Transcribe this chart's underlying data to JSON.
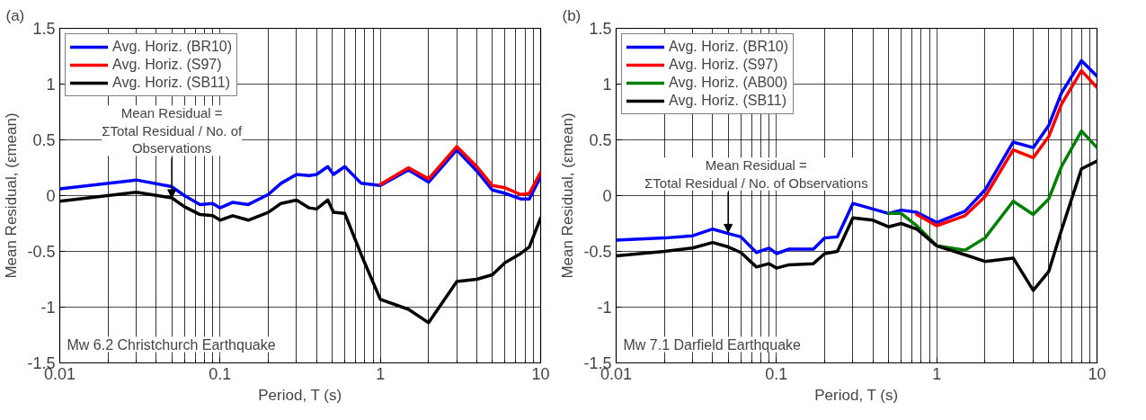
{
  "chart_data": [
    {
      "type": "line",
      "title": "(a)",
      "xlabel": "Period, T (s)",
      "ylabel": "Mean Residual, (εmean)",
      "log": "x",
      "grid": true,
      "legend": "top left",
      "xlim": [
        0.01,
        10
      ],
      "xticks": [
        0.01,
        0.1,
        1,
        10
      ],
      "ylim": [
        -1.5,
        1.5
      ],
      "yticks": [
        -1.5,
        -1,
        -0.5,
        0,
        0.5,
        1,
        1.5
      ],
      "x": [
        0.01,
        0.03,
        0.05,
        0.06,
        0.075,
        0.09,
        0.1,
        0.12,
        0.15,
        0.2,
        0.24,
        0.3,
        0.36,
        0.4,
        0.47,
        0.51,
        0.6,
        0.76,
        1,
        1.5,
        2,
        3,
        4,
        5,
        6,
        7.5,
        8.5,
        10
      ],
      "series": [
        {
          "name": "Avg. Horiz. (BR10)",
          "color": "#0000ff",
          "values": [
            0.06,
            0.14,
            0.08,
            0.0,
            -0.08,
            -0.07,
            -0.11,
            -0.06,
            -0.08,
            0.01,
            0.11,
            0.19,
            0.18,
            0.19,
            0.26,
            0.19,
            0.26,
            0.11,
            0.09,
            0.23,
            0.12,
            0.41,
            0.22,
            0.05,
            0.02,
            -0.03,
            -0.03,
            0.17
          ]
        },
        {
          "name": "Avg. Horiz. (S97)",
          "color": "#ff0000",
          "values": [
            null,
            null,
            null,
            null,
            null,
            null,
            null,
            null,
            null,
            null,
            null,
            null,
            null,
            null,
            null,
            null,
            null,
            null,
            0.1,
            0.25,
            0.15,
            0.44,
            0.26,
            0.09,
            0.07,
            0.01,
            0.02,
            0.21
          ]
        },
        {
          "name": "Avg. Horiz. (SB11)",
          "color": "#000000",
          "values": [
            -0.05,
            0.03,
            -0.02,
            -0.1,
            -0.17,
            -0.18,
            -0.22,
            -0.18,
            -0.22,
            -0.15,
            -0.07,
            -0.04,
            -0.11,
            -0.12,
            -0.04,
            -0.15,
            -0.16,
            -0.53,
            -0.93,
            -1.02,
            -1.14,
            -0.77,
            -0.75,
            -0.71,
            -0.6,
            -0.52,
            -0.46,
            -0.2
          ]
        }
      ],
      "annotations": [
        {
          "text": "Mean Residual =\nΣTotal Residual / No. of\nObservations",
          "x": 0.05,
          "y": -0.02
        },
        "Mw 6.2 Christchurch Earthquake"
      ]
    },
    {
      "type": "line",
      "title": "(b)",
      "xlabel": "Period, T (s)",
      "ylabel": "Mean Residual, (εmean)",
      "log": "x",
      "grid": true,
      "legend": "top left",
      "xlim": [
        0.01,
        10
      ],
      "xticks": [
        0.01,
        0.1,
        1,
        10
      ],
      "ylim": [
        -1.5,
        1.5
      ],
      "yticks": [
        -1.5,
        -1,
        -0.5,
        0,
        0.5,
        1,
        1.5
      ],
      "x": [
        0.01,
        0.02,
        0.03,
        0.04,
        0.05,
        0.06,
        0.075,
        0.09,
        0.1,
        0.12,
        0.17,
        0.2,
        0.24,
        0.3,
        0.4,
        0.5,
        0.6,
        0.75,
        1,
        1.5,
        2,
        3,
        4,
        5,
        6,
        8,
        10
      ],
      "series": [
        {
          "name": "Avg. Horiz. (BR10)",
          "color": "#0000ff",
          "values": [
            -0.4,
            -0.38,
            -0.36,
            -0.3,
            -0.34,
            -0.37,
            -0.51,
            -0.47,
            -0.52,
            -0.48,
            -0.48,
            -0.38,
            -0.37,
            -0.07,
            -0.12,
            -0.16,
            -0.13,
            -0.15,
            -0.24,
            -0.14,
            0.05,
            0.48,
            0.43,
            0.63,
            0.92,
            1.21,
            1.07
          ]
        },
        {
          "name": "Avg. Horiz. (S97)",
          "color": "#ff0000",
          "values": [
            null,
            null,
            null,
            null,
            null,
            null,
            null,
            null,
            null,
            null,
            null,
            null,
            null,
            null,
            null,
            null,
            null,
            -0.17,
            -0.27,
            -0.18,
            -0.01,
            0.41,
            0.34,
            0.53,
            0.82,
            1.12,
            0.97
          ]
        },
        {
          "name": "Avg. Horiz. (AB00)",
          "color": "#008000",
          "values": [
            null,
            null,
            null,
            null,
            null,
            null,
            null,
            null,
            null,
            null,
            null,
            null,
            null,
            null,
            null,
            -0.16,
            -0.16,
            -0.27,
            -0.45,
            -0.49,
            -0.38,
            -0.05,
            -0.17,
            -0.03,
            0.26,
            0.58,
            0.43
          ]
        },
        {
          "name": "Avg. Horiz. (SB11)",
          "color": "#000000",
          "values": [
            -0.54,
            -0.5,
            -0.47,
            -0.42,
            -0.46,
            -0.51,
            -0.64,
            -0.61,
            -0.65,
            -0.62,
            -0.61,
            -0.52,
            -0.5,
            -0.2,
            -0.22,
            -0.28,
            -0.25,
            -0.3,
            -0.45,
            -0.53,
            -0.59,
            -0.56,
            -0.85,
            -0.68,
            -0.31,
            0.24,
            0.31
          ]
        }
      ],
      "annotations": [
        {
          "text": "Mean Residual =\nΣTotal Residual / No. of Observations",
          "x": 0.05,
          "y": -0.33
        },
        "Mw 7.1 Darfield Earthquake"
      ]
    }
  ]
}
